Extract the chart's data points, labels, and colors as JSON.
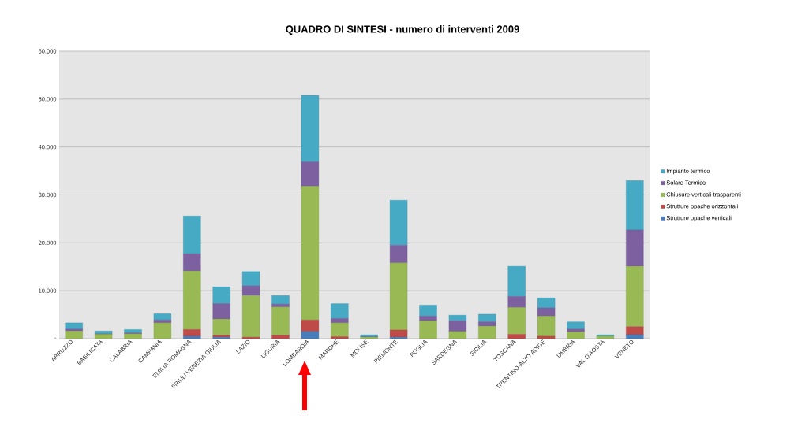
{
  "chart_data": {
    "type": "bar",
    "stacked": true,
    "title": "QUADRO DI SINTESI - numero di interventi 2009",
    "categories": [
      "ABRUZZO",
      "BASILICATA",
      "CALABRIA",
      "CAMPANIA",
      "EMILIA ROMAGNA",
      "FRIULI VENEZIA GIULIA",
      "LAZIO",
      "LIGURIA",
      "LOMBARDIA",
      "MARCHE",
      "MOLISE",
      "PIEMONTE",
      "PUGLIA",
      "SARDEGNA",
      "SICILIA",
      "TOSCANA",
      "TRENTINO-ALTO ADIGE",
      "UMBRIA",
      "VAL D'AOSTA",
      "VENETO"
    ],
    "series": [
      {
        "name": "Strutture opache verticali",
        "color": "#4a7ebb",
        "values": [
          0,
          0,
          0,
          0,
          500,
          300,
          0,
          0,
          1500,
          0,
          0,
          300,
          0,
          0,
          0,
          0,
          0,
          0,
          0,
          800
        ]
      },
      {
        "name": "Strutture opache orizzontali",
        "color": "#be4b48",
        "values": [
          0,
          0,
          0,
          0,
          1400,
          400,
          300,
          700,
          2400,
          400,
          0,
          1500,
          0,
          0,
          0,
          900,
          500,
          0,
          0,
          1700
        ]
      },
      {
        "name": "Chiusure verticali trasparenti",
        "color": "#98b954",
        "values": [
          1600,
          900,
          1000,
          3300,
          12200,
          3400,
          8700,
          5900,
          27900,
          2900,
          300,
          14000,
          3700,
          1500,
          2600,
          5600,
          4200,
          1400,
          500,
          12600
        ]
      },
      {
        "name": "Solare Termico",
        "color": "#7d60a0",
        "values": [
          400,
          100,
          200,
          600,
          3600,
          3200,
          2000,
          600,
          5100,
          900,
          100,
          3700,
          1000,
          2200,
          900,
          2300,
          1700,
          600,
          null,
          7600
        ]
      },
      {
        "name": "Impianto termico",
        "color": "#46aac5",
        "values": [
          1300,
          600,
          700,
          1300,
          7900,
          3500,
          3000,
          1800,
          13900,
          3100,
          400,
          9400,
          2300,
          1200,
          1600,
          6300,
          2100,
          1500,
          300,
          10300
        ]
      }
    ],
    "ylim": [
      0,
      60000
    ],
    "yticks": [
      {
        "value": 0,
        "label": "-"
      },
      {
        "value": 10000,
        "label": "10.000"
      },
      {
        "value": 20000,
        "label": "20.000"
      },
      {
        "value": 30000,
        "label": "30.000"
      },
      {
        "value": 40000,
        "label": "40.000"
      },
      {
        "value": 50000,
        "label": "50.000"
      },
      {
        "value": 60000,
        "label": "60.000"
      }
    ],
    "grid": "y",
    "legend": "right"
  }
}
